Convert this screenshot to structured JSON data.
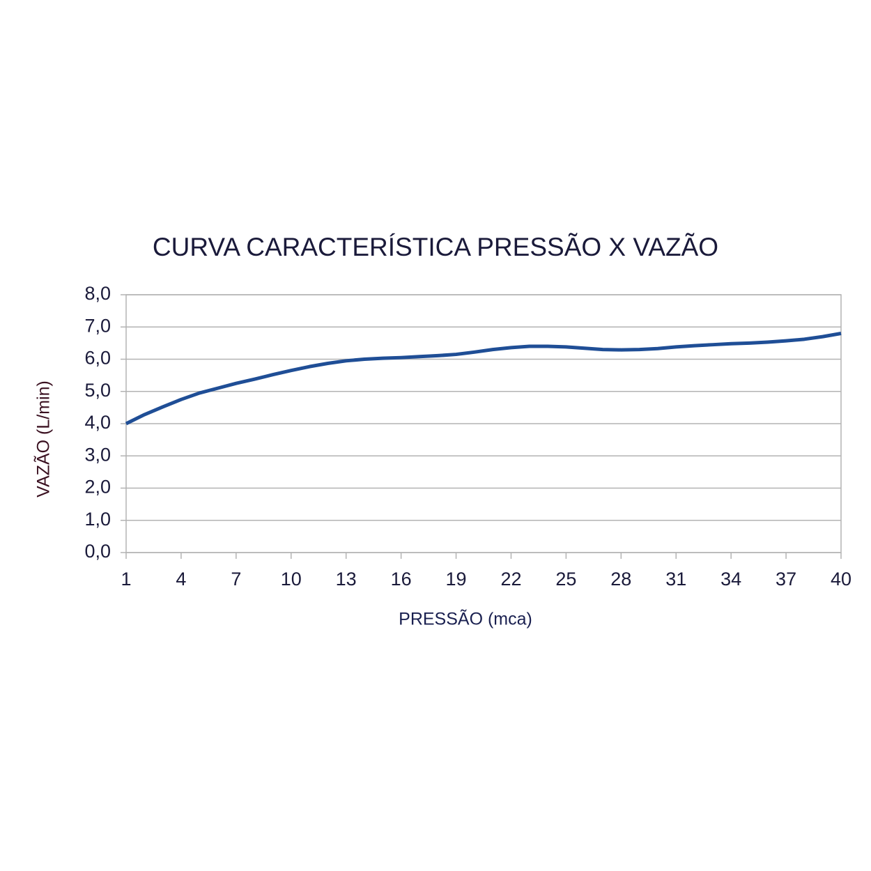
{
  "chart_data": {
    "type": "line",
    "title": "CURVA CARACTERÍSTICA PRESSÃO X VAZÃO",
    "x_label": "PRESSÃO (mca)",
    "y_label": "VAZÃO (L/min)",
    "x": [
      1,
      2,
      3,
      4,
      5,
      6,
      7,
      8,
      9,
      10,
      11,
      12,
      13,
      14,
      15,
      16,
      17,
      18,
      19,
      20,
      21,
      22,
      23,
      24,
      25,
      26,
      27,
      28,
      29,
      30,
      31,
      32,
      33,
      34,
      35,
      36,
      37,
      38,
      39,
      40
    ],
    "series": [
      {
        "name": "VAZÃO",
        "color": "#1f4e96",
        "values": [
          4.0,
          4.28,
          4.52,
          4.75,
          4.95,
          5.1,
          5.25,
          5.38,
          5.52,
          5.65,
          5.77,
          5.87,
          5.95,
          6.0,
          6.03,
          6.05,
          6.08,
          6.11,
          6.15,
          6.22,
          6.3,
          6.36,
          6.4,
          6.4,
          6.38,
          6.34,
          6.3,
          6.29,
          6.3,
          6.33,
          6.38,
          6.42,
          6.45,
          6.48,
          6.5,
          6.53,
          6.57,
          6.62,
          6.7,
          6.8
        ]
      }
    ],
    "xlim": [
      1,
      40
    ],
    "xticks": [
      1,
      4,
      7,
      10,
      13,
      16,
      19,
      22,
      25,
      28,
      31,
      34,
      37,
      40
    ],
    "ylim": [
      0,
      8
    ],
    "yticks": [
      {
        "value": 0,
        "label": "0,0"
      },
      {
        "value": 1,
        "label": "1,0"
      },
      {
        "value": 2,
        "label": "2,0"
      },
      {
        "value": 3,
        "label": "3,0"
      },
      {
        "value": 4,
        "label": "4,0"
      },
      {
        "value": 5,
        "label": "5,0"
      },
      {
        "value": 6,
        "label": "6,0"
      },
      {
        "value": 7,
        "label": "7,0"
      },
      {
        "value": 8,
        "label": "8,0"
      }
    ],
    "grid": true
  }
}
